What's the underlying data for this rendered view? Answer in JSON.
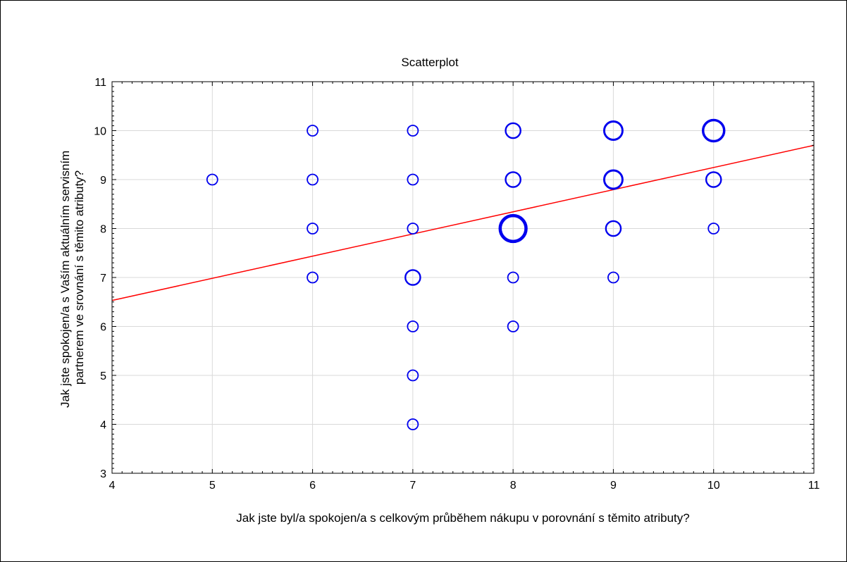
{
  "chart_data": {
    "type": "scatter",
    "title": "Scatterplot",
    "xlabel": "Jak jste byl/a spokojen/a s celkovým průběhem nákupu v porovnání s těmito atributy?",
    "ylabel": "Jak jste spokojen/a s Vaším aktuálním servisním partnerem ve srovnání s těmito atributy?",
    "ylabel_lines": [
      "Jak jste spokojen/a s Vaším aktuálním servisním",
      "partnerem ve srovnání s těmito atributy?"
    ],
    "xlim": [
      4,
      11
    ],
    "ylim": [
      3,
      11
    ],
    "x_ticks": [
      "4",
      "5",
      "6",
      "7",
      "8",
      "9",
      "10",
      "11"
    ],
    "y_ticks": [
      "3",
      "4",
      "5",
      "6",
      "7",
      "8",
      "9",
      "10",
      "11"
    ],
    "grid": true,
    "marker_color": "#0000ee",
    "fit_line_color": "#ff0000",
    "fit_line": {
      "x": [
        4,
        11
      ],
      "y": [
        6.53,
        9.7
      ]
    },
    "points": [
      {
        "x": 5,
        "y": 9,
        "weight": 1
      },
      {
        "x": 6,
        "y": 10,
        "weight": 1
      },
      {
        "x": 6,
        "y": 9,
        "weight": 1
      },
      {
        "x": 6,
        "y": 8,
        "weight": 1
      },
      {
        "x": 6,
        "y": 7,
        "weight": 1
      },
      {
        "x": 7,
        "y": 10,
        "weight": 1
      },
      {
        "x": 7,
        "y": 9,
        "weight": 1
      },
      {
        "x": 7,
        "y": 8,
        "weight": 1
      },
      {
        "x": 7,
        "y": 7,
        "weight": 2
      },
      {
        "x": 7,
        "y": 6,
        "weight": 1
      },
      {
        "x": 7,
        "y": 5,
        "weight": 1
      },
      {
        "x": 7,
        "y": 4,
        "weight": 1
      },
      {
        "x": 8,
        "y": 10,
        "weight": 2
      },
      {
        "x": 8,
        "y": 9,
        "weight": 2
      },
      {
        "x": 8,
        "y": 8,
        "weight": 6
      },
      {
        "x": 8,
        "y": 7,
        "weight": 1
      },
      {
        "x": 8,
        "y": 6,
        "weight": 1
      },
      {
        "x": 9,
        "y": 10,
        "weight": 3
      },
      {
        "x": 9,
        "y": 9,
        "weight": 3
      },
      {
        "x": 9,
        "y": 8,
        "weight": 2
      },
      {
        "x": 9,
        "y": 7,
        "weight": 1
      },
      {
        "x": 10,
        "y": 10,
        "weight": 4
      },
      {
        "x": 10,
        "y": 9,
        "weight": 2
      },
      {
        "x": 10,
        "y": 8,
        "weight": 1
      }
    ]
  }
}
